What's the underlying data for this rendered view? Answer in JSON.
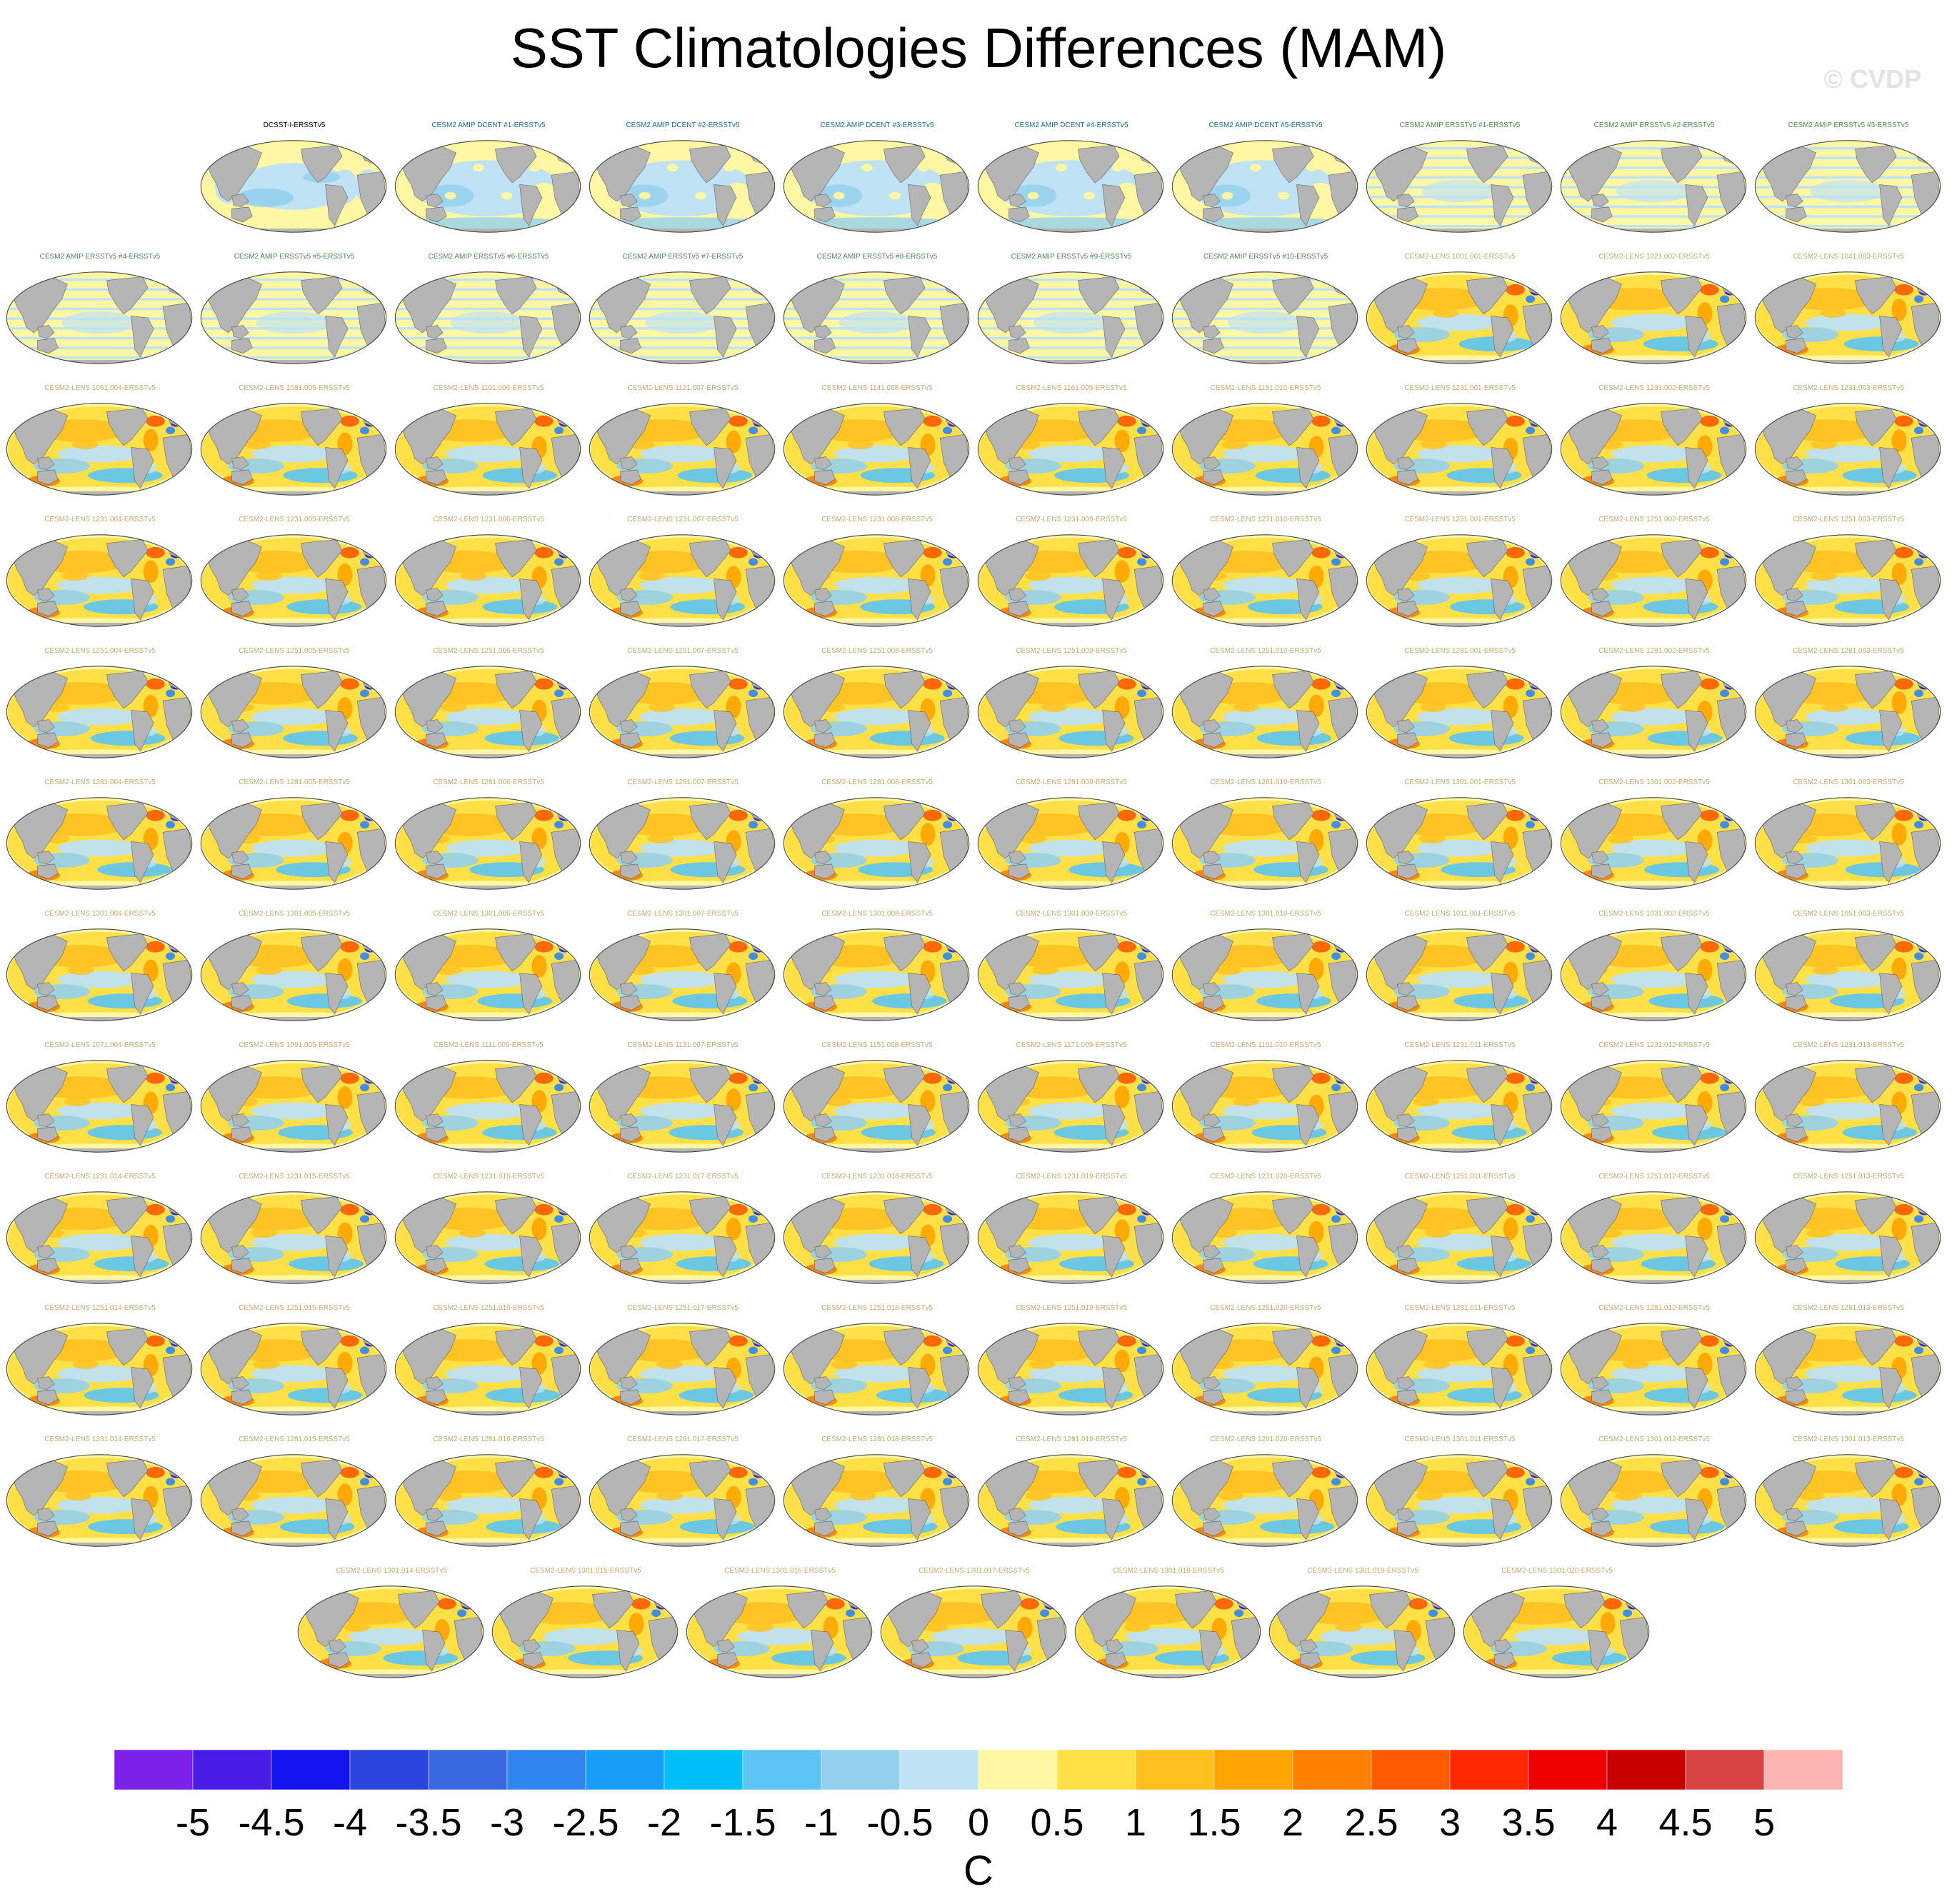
{
  "title": "SST Climatologies Differences (MAM)",
  "watermark": "© CVDP",
  "chart_data": {
    "type": "map-grid",
    "projection": "robinson",
    "season": "MAM",
    "variable": "SST climatology difference",
    "colorbar": {
      "unit": "C",
      "labels": [
        "-5",
        "-4.5",
        "-4",
        "-3.5",
        "-3",
        "-2.5",
        "-2",
        "-1.5",
        "-1",
        "-0.5",
        "0",
        "0.5",
        "1",
        "1.5",
        "2",
        "2.5",
        "3",
        "3.5",
        "4",
        "4.5",
        "5"
      ],
      "colors": [
        "#7b21e8",
        "#4b1be8",
        "#1414f0",
        "#2a46dc",
        "#3a68e0",
        "#2f86f0",
        "#189ef8",
        "#00c0f8",
        "#5cc4f4",
        "#94d0ee",
        "#bfe2f4",
        "#fff7a3",
        "#ffe046",
        "#ffc020",
        "#ffa400",
        "#ff8000",
        "#ff5a00",
        "#ff2a00",
        "#ee0000",
        "#c80000",
        "#d84444",
        "#ffb4b4"
      ]
    },
    "title_colors": {
      "obs": "#000000",
      "amip_dcent": "#1a6e8a",
      "amip_ersst": "#4e8a4e",
      "lens": "#c6a86e"
    },
    "rows": [
      [
        {
          "label": "DCSST-I-ERSSTv5",
          "type": "obs"
        },
        {
          "label": "CESM2 AMIP DCENT #1-ERSSTv5",
          "type": "amip_dcent"
        },
        {
          "label": "CESM2 AMIP DCENT #2-ERSSTv5",
          "type": "amip_dcent"
        },
        {
          "label": "CESM2 AMIP DCENT #3-ERSSTv5",
          "type": "amip_dcent"
        },
        {
          "label": "CESM2 AMIP DCENT #4-ERSSTv5",
          "type": "amip_dcent"
        },
        {
          "label": "CESM2 AMIP DCENT #5-ERSSTv5",
          "type": "amip_dcent"
        },
        {
          "label": "CESM2 AMIP ERSSTv5 #1-ERSSTv5",
          "type": "amip_ersst"
        },
        {
          "label": "CESM2 AMIP ERSSTv5 #2-ERSSTv5",
          "type": "amip_ersst"
        },
        {
          "label": "CESM2 AMIP ERSSTv5 #3-ERSSTv5",
          "type": "amip_ersst"
        }
      ],
      [
        {
          "label": "CESM2 AMIP ERSSTv5 #4-ERSSTv5",
          "type": "amip_ersst"
        },
        {
          "label": "CESM2 AMIP ERSSTv5 #5-ERSSTv5",
          "type": "amip_ersst"
        },
        {
          "label": "CESM2 AMIP ERSSTv5 #6-ERSSTv5",
          "type": "amip_ersst"
        },
        {
          "label": "CESM2 AMIP ERSSTv5 #7-ERSSTv5",
          "type": "amip_ersst"
        },
        {
          "label": "CESM2 AMIP ERSSTv5 #8-ERSSTv5",
          "type": "amip_ersst"
        },
        {
          "label": "CESM2 AMIP ERSSTv5 #9-ERSSTv5",
          "type": "amip_ersst"
        },
        {
          "label": "CESM2 AMIP ERSSTv5 #10-ERSSTv5",
          "type": "amip_ersst"
        },
        {
          "label": "CESM2-LENS 1001.001-ERSSTv5",
          "type": "lens"
        },
        {
          "label": "CESM2-LENS 1021.002-ERSSTv5",
          "type": "lens"
        },
        {
          "label": "CESM2-LENS 1041.003-ERSSTv5",
          "type": "lens"
        }
      ],
      [
        {
          "label": "CESM2-LENS 1061.004-ERSSTv5",
          "type": "lens"
        },
        {
          "label": "CESM2-LENS 1081.005-ERSSTv5",
          "type": "lens"
        },
        {
          "label": "CESM2-LENS 1101.006-ERSSTv5",
          "type": "lens"
        },
        {
          "label": "CESM2-LENS 1121.007-ERSSTv5",
          "type": "lens"
        },
        {
          "label": "CESM2-LENS 1141.008-ERSSTv5",
          "type": "lens"
        },
        {
          "label": "CESM2-LENS 1161.009-ERSSTv5",
          "type": "lens"
        },
        {
          "label": "CESM2-LENS 1181.010-ERSSTv5",
          "type": "lens"
        },
        {
          "label": "CESM2-LENS 1231.001-ERSSTv5",
          "type": "lens"
        },
        {
          "label": "CESM2-LENS 1231.002-ERSSTv5",
          "type": "lens"
        },
        {
          "label": "CESM2-LENS 1231.003-ERSSTv5",
          "type": "lens"
        }
      ],
      [
        {
          "label": "CESM2-LENS 1231.004-ERSSTv5",
          "type": "lens"
        },
        {
          "label": "CESM2-LENS 1231.005-ERSSTv5",
          "type": "lens"
        },
        {
          "label": "CESM2-LENS 1231.006-ERSSTv5",
          "type": "lens"
        },
        {
          "label": "CESM2-LENS 1231.007-ERSSTv5",
          "type": "lens"
        },
        {
          "label": "CESM2-LENS 1231.008-ERSSTv5",
          "type": "lens"
        },
        {
          "label": "CESM2-LENS 1231.009-ERSSTv5",
          "type": "lens"
        },
        {
          "label": "CESM2-LENS 1231.010-ERSSTv5",
          "type": "lens"
        },
        {
          "label": "CESM2-LENS 1251.001-ERSSTv5",
          "type": "lens"
        },
        {
          "label": "CESM2-LENS 1251.002-ERSSTv5",
          "type": "lens"
        },
        {
          "label": "CESM2-LENS 1251.003-ERSSTv5",
          "type": "lens"
        }
      ],
      [
        {
          "label": "CESM2-LENS 1251.004-ERSSTv5",
          "type": "lens"
        },
        {
          "label": "CESM2-LENS 1251.005-ERSSTv5",
          "type": "lens"
        },
        {
          "label": "CESM2-LENS 1251.006-ERSSTv5",
          "type": "lens"
        },
        {
          "label": "CESM2-LENS 1251.007-ERSSTv5",
          "type": "lens"
        },
        {
          "label": "CESM2-LENS 1251.008-ERSSTv5",
          "type": "lens"
        },
        {
          "label": "CESM2-LENS 1251.009-ERSSTv5",
          "type": "lens"
        },
        {
          "label": "CESM2-LENS 1251.010-ERSSTv5",
          "type": "lens"
        },
        {
          "label": "CESM2-LENS 1281.001-ERSSTv5",
          "type": "lens"
        },
        {
          "label": "CESM2-LENS 1281.002-ERSSTv5",
          "type": "lens"
        },
        {
          "label": "CESM2-LENS 1281.003-ERSSTv5",
          "type": "lens"
        }
      ],
      [
        {
          "label": "CESM2-LENS 1281.004-ERSSTv5",
          "type": "lens"
        },
        {
          "label": "CESM2-LENS 1281.005-ERSSTv5",
          "type": "lens"
        },
        {
          "label": "CESM2-LENS 1281.006-ERSSTv5",
          "type": "lens"
        },
        {
          "label": "CESM2-LENS 1281.007-ERSSTv5",
          "type": "lens"
        },
        {
          "label": "CESM2-LENS 1281.008-ERSSTv5",
          "type": "lens"
        },
        {
          "label": "CESM2-LENS 1281.009-ERSSTv5",
          "type": "lens"
        },
        {
          "label": "CESM2-LENS 1281.010-ERSSTv5",
          "type": "lens"
        },
        {
          "label": "CESM2-LENS 1301.001-ERSSTv5",
          "type": "lens"
        },
        {
          "label": "CESM2-LENS 1301.002-ERSSTv5",
          "type": "lens"
        },
        {
          "label": "CESM2-LENS 1301.003-ERSSTv5",
          "type": "lens"
        }
      ],
      [
        {
          "label": "CESM2-LENS 1301.004-ERSSTv5",
          "type": "lens"
        },
        {
          "label": "CESM2-LENS 1301.005-ERSSTv5",
          "type": "lens"
        },
        {
          "label": "CESM2-LENS 1301.006-ERSSTv5",
          "type": "lens"
        },
        {
          "label": "CESM2-LENS 1301.007-ERSSTv5",
          "type": "lens"
        },
        {
          "label": "CESM2-LENS 1301.008-ERSSTv5",
          "type": "lens"
        },
        {
          "label": "CESM2-LENS 1301.009-ERSSTv5",
          "type": "lens"
        },
        {
          "label": "CESM2-LENS 1301.010-ERSSTv5",
          "type": "lens"
        },
        {
          "label": "CESM2-LENS 1011.001-ERSSTv5",
          "type": "lens"
        },
        {
          "label": "CESM2-LENS 1031.002-ERSSTv5",
          "type": "lens"
        },
        {
          "label": "CESM2-LENS 1051.003-ERSSTv5",
          "type": "lens"
        }
      ],
      [
        {
          "label": "CESM2-LENS 1071.004-ERSSTv5",
          "type": "lens"
        },
        {
          "label": "CESM2-LENS 1091.005-ERSSTv5",
          "type": "lens"
        },
        {
          "label": "CESM2-LENS 1111.006-ERSSTv5",
          "type": "lens"
        },
        {
          "label": "CESM2-LENS 1131.007-ERSSTv5",
          "type": "lens"
        },
        {
          "label": "CESM2-LENS 1151.008-ERSSTv5",
          "type": "lens"
        },
        {
          "label": "CESM2-LENS 1171.009-ERSSTv5",
          "type": "lens"
        },
        {
          "label": "CESM2-LENS 1191.010-ERSSTv5",
          "type": "lens"
        },
        {
          "label": "CESM2-LENS 1231.011-ERSSTv5",
          "type": "lens"
        },
        {
          "label": "CESM2-LENS 1231.012-ERSSTv5",
          "type": "lens"
        },
        {
          "label": "CESM2-LENS 1231.013-ERSSTv5",
          "type": "lens"
        }
      ],
      [
        {
          "label": "CESM2-LENS 1231.014-ERSSTv5",
          "type": "lens"
        },
        {
          "label": "CESM2-LENS 1231.015-ERSSTv5",
          "type": "lens"
        },
        {
          "label": "CESM2-LENS 1231.016-ERSSTv5",
          "type": "lens"
        },
        {
          "label": "CESM2-LENS 1231.017-ERSSTv5",
          "type": "lens"
        },
        {
          "label": "CESM2-LENS 1231.018-ERSSTv5",
          "type": "lens"
        },
        {
          "label": "CESM2-LENS 1231.019-ERSSTv5",
          "type": "lens"
        },
        {
          "label": "CESM2-LENS 1231.020-ERSSTv5",
          "type": "lens"
        },
        {
          "label": "CESM2-LENS 1251.011-ERSSTv5",
          "type": "lens"
        },
        {
          "label": "CESM2-LENS 1251.012-ERSSTv5",
          "type": "lens"
        },
        {
          "label": "CESM2-LENS 1251.013-ERSSTv5",
          "type": "lens"
        }
      ],
      [
        {
          "label": "CESM2-LENS 1251.014-ERSSTv5",
          "type": "lens"
        },
        {
          "label": "CESM2-LENS 1251.015-ERSSTv5",
          "type": "lens"
        },
        {
          "label": "CESM2-LENS 1251.016-ERSSTv5",
          "type": "lens"
        },
        {
          "label": "CESM2-LENS 1251.017-ERSSTv5",
          "type": "lens"
        },
        {
          "label": "CESM2-LENS 1251.018-ERSSTv5",
          "type": "lens"
        },
        {
          "label": "CESM2-LENS 1251.019-ERSSTv5",
          "type": "lens"
        },
        {
          "label": "CESM2-LENS 1251.020-ERSSTv5",
          "type": "lens"
        },
        {
          "label": "CESM2-LENS 1281.011-ERSSTv5",
          "type": "lens"
        },
        {
          "label": "CESM2-LENS 1281.012-ERSSTv5",
          "type": "lens"
        },
        {
          "label": "CESM2-LENS 1281.013-ERSSTv5",
          "type": "lens"
        }
      ],
      [
        {
          "label": "CESM2-LENS 1281.014-ERSSTv5",
          "type": "lens"
        },
        {
          "label": "CESM2-LENS 1281.015-ERSSTv5",
          "type": "lens"
        },
        {
          "label": "CESM2-LENS 1281.016-ERSSTv5",
          "type": "lens"
        },
        {
          "label": "CESM2-LENS 1281.017-ERSSTv5",
          "type": "lens"
        },
        {
          "label": "CESM2-LENS 1281.018-ERSSTv5",
          "type": "lens"
        },
        {
          "label": "CESM2-LENS 1281.019-ERSSTv5",
          "type": "lens"
        },
        {
          "label": "CESM2-LENS 1281.020-ERSSTv5",
          "type": "lens"
        },
        {
          "label": "CESM2-LENS 1301.011-ERSSTv5",
          "type": "lens"
        },
        {
          "label": "CESM2-LENS 1301.012-ERSSTv5",
          "type": "lens"
        },
        {
          "label": "CESM2-LENS 1301.013-ERSSTv5",
          "type": "lens"
        }
      ],
      [
        {
          "label": "CESM2-LENS 1301.014-ERSSTv5",
          "type": "lens"
        },
        {
          "label": "CESM2-LENS 1301.015-ERSSTv5",
          "type": "lens"
        },
        {
          "label": "CESM2-LENS 1301.016-ERSSTv5",
          "type": "lens"
        },
        {
          "label": "CESM2-LENS 1301.017-ERSSTv5",
          "type": "lens"
        },
        {
          "label": "CESM2-LENS 1301.018-ERSSTv5",
          "type": "lens"
        },
        {
          "label": "CESM2-LENS 1301.019-ERSSTv5",
          "type": "lens"
        },
        {
          "label": "CESM2-LENS 1301.020-ERSSTv5",
          "type": "lens"
        }
      ]
    ]
  }
}
